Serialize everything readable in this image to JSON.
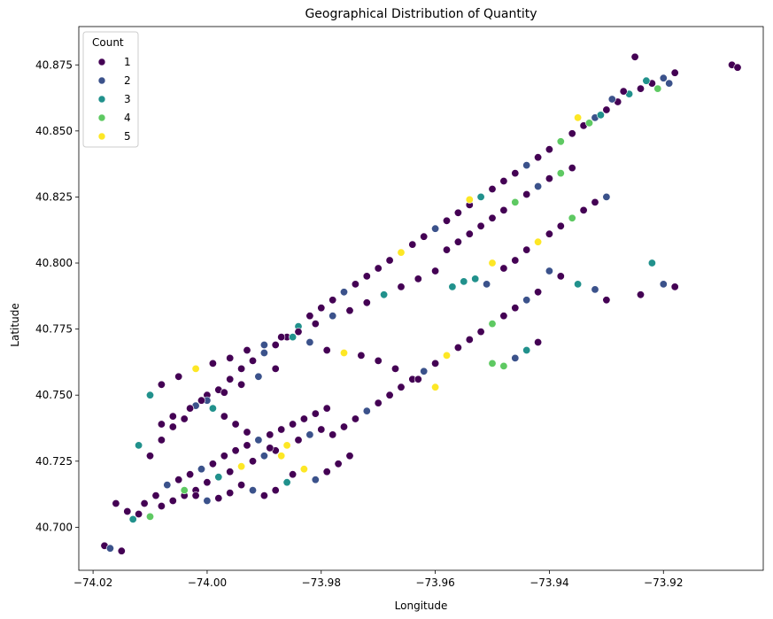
{
  "chart_data": {
    "type": "scatter",
    "title": "Geographical Distribution of Quantity",
    "xlabel": "Longitude",
    "ylabel": "Latitude",
    "xlim": [
      -74.0225,
      -73.9025
    ],
    "ylim": [
      40.6837,
      40.8895
    ],
    "xticks": [
      -74.02,
      -74.0,
      -73.98,
      -73.96,
      -73.94,
      -73.92
    ],
    "xtick_labels": [
      "−74.02",
      "−74.00",
      "−73.98",
      "−73.96",
      "−73.94",
      "−73.92"
    ],
    "yticks": [
      40.7,
      40.725,
      40.75,
      40.775,
      40.8,
      40.825,
      40.85,
      40.875
    ],
    "ytick_labels": [
      "40.700",
      "40.725",
      "40.750",
      "40.775",
      "40.800",
      "40.825",
      "40.850",
      "40.875"
    ],
    "grid": false,
    "legend": {
      "title": "Count",
      "placement": "top-left",
      "entries": [
        {
          "label": "1",
          "color": "#440154"
        },
        {
          "label": "2",
          "color": "#3b528b"
        },
        {
          "label": "3",
          "color": "#21918c"
        },
        {
          "label": "4",
          "color": "#5ec962"
        },
        {
          "label": "5",
          "color": "#fde725"
        }
      ]
    },
    "colors": {
      "1": "#440154",
      "2": "#3b528b",
      "3": "#21918c",
      "4": "#5ec962",
      "5": "#fde725"
    },
    "points": [
      [
        -74.018,
        40.693,
        1
      ],
      [
        -74.017,
        40.692,
        2
      ],
      [
        -74.015,
        40.691,
        1
      ],
      [
        -74.016,
        40.709,
        1
      ],
      [
        -74.014,
        40.706,
        1
      ],
      [
        -74.013,
        40.703,
        3
      ],
      [
        -74.012,
        40.705,
        1
      ],
      [
        -74.011,
        40.709,
        1
      ],
      [
        -74.01,
        40.704,
        4
      ],
      [
        -74.009,
        40.712,
        1
      ],
      [
        -74.008,
        40.708,
        1
      ],
      [
        -74.007,
        40.716,
        2
      ],
      [
        -74.006,
        40.71,
        1
      ],
      [
        -74.005,
        40.718,
        1
      ],
      [
        -74.004,
        40.712,
        1
      ],
      [
        -74.003,
        40.72,
        1
      ],
      [
        -74.002,
        40.714,
        1
      ],
      [
        -74.001,
        40.722,
        2
      ],
      [
        -74.0,
        40.717,
        1
      ],
      [
        -73.999,
        40.724,
        1
      ],
      [
        -73.998,
        40.719,
        3
      ],
      [
        -73.997,
        40.727,
        1
      ],
      [
        -73.996,
        40.721,
        1
      ],
      [
        -73.995,
        40.729,
        1
      ],
      [
        -73.994,
        40.723,
        5
      ],
      [
        -73.993,
        40.731,
        1
      ],
      [
        -73.992,
        40.725,
        1
      ],
      [
        -73.991,
        40.733,
        1
      ],
      [
        -73.99,
        40.727,
        2
      ],
      [
        -73.989,
        40.735,
        1
      ],
      [
        -73.988,
        40.729,
        1
      ],
      [
        -73.987,
        40.737,
        1
      ],
      [
        -73.986,
        40.731,
        5
      ],
      [
        -73.985,
        40.739,
        1
      ],
      [
        -73.984,
        40.733,
        1
      ],
      [
        -73.983,
        40.741,
        1
      ],
      [
        -73.982,
        40.735,
        2
      ],
      [
        -73.981,
        40.743,
        1
      ],
      [
        -73.98,
        40.737,
        1
      ],
      [
        -73.979,
        40.745,
        1
      ],
      [
        -74.012,
        40.731,
        3
      ],
      [
        -74.01,
        40.727,
        1
      ],
      [
        -74.008,
        40.733,
        1
      ],
      [
        -74.006,
        40.738,
        1
      ],
      [
        -74.004,
        40.741,
        1
      ],
      [
        -74.002,
        40.746,
        2
      ],
      [
        -74.0,
        40.75,
        1
      ],
      [
        -73.998,
        40.752,
        1
      ],
      [
        -73.996,
        40.756,
        1
      ],
      [
        -73.994,
        40.76,
        1
      ],
      [
        -73.992,
        40.763,
        1
      ],
      [
        -73.99,
        40.766,
        2
      ],
      [
        -73.988,
        40.769,
        1
      ],
      [
        -73.986,
        40.772,
        1
      ],
      [
        -73.984,
        40.776,
        3
      ],
      [
        -73.982,
        40.78,
        1
      ],
      [
        -73.98,
        40.783,
        1
      ],
      [
        -73.978,
        40.786,
        1
      ],
      [
        -73.976,
        40.789,
        2
      ],
      [
        -73.974,
        40.792,
        1
      ],
      [
        -73.972,
        40.795,
        1
      ],
      [
        -73.97,
        40.798,
        1
      ],
      [
        -73.968,
        40.801,
        1
      ],
      [
        -73.966,
        40.804,
        5
      ],
      [
        -73.964,
        40.807,
        1
      ],
      [
        -73.962,
        40.81,
        1
      ],
      [
        -73.96,
        40.813,
        2
      ],
      [
        -73.958,
        40.816,
        1
      ],
      [
        -73.956,
        40.819,
        1
      ],
      [
        -73.954,
        40.822,
        1
      ],
      [
        -73.952,
        40.825,
        3
      ],
      [
        -73.95,
        40.828,
        1
      ],
      [
        -73.948,
        40.831,
        1
      ],
      [
        -73.946,
        40.834,
        1
      ],
      [
        -73.944,
        40.837,
        2
      ],
      [
        -73.942,
        40.84,
        1
      ],
      [
        -73.94,
        40.843,
        1
      ],
      [
        -73.938,
        40.846,
        4
      ],
      [
        -73.936,
        40.849,
        1
      ],
      [
        -73.934,
        40.852,
        1
      ],
      [
        -73.932,
        40.855,
        2
      ],
      [
        -73.93,
        40.858,
        1
      ],
      [
        -73.928,
        40.861,
        1
      ],
      [
        -73.926,
        40.864,
        3
      ],
      [
        -73.924,
        40.866,
        1
      ],
      [
        -73.922,
        40.868,
        1
      ],
      [
        -73.92,
        40.87,
        2
      ],
      [
        -73.918,
        40.872,
        1
      ],
      [
        -73.925,
        40.878,
        1
      ],
      [
        -73.908,
        40.875,
        1
      ],
      [
        -73.907,
        40.874,
        1
      ],
      [
        -73.918,
        40.791,
        1
      ],
      [
        -73.92,
        40.792,
        2
      ],
      [
        -73.922,
        40.8,
        3
      ],
      [
        -73.924,
        40.788,
        1
      ],
      [
        -73.93,
        40.786,
        1
      ],
      [
        -73.932,
        40.79,
        2
      ],
      [
        -73.935,
        40.792,
        3
      ],
      [
        -73.938,
        40.795,
        1
      ],
      [
        -73.94,
        40.797,
        2
      ],
      [
        -73.942,
        40.789,
        1
      ],
      [
        -73.944,
        40.786,
        2
      ],
      [
        -73.946,
        40.783,
        1
      ],
      [
        -73.948,
        40.78,
        1
      ],
      [
        -73.95,
        40.777,
        4
      ],
      [
        -73.952,
        40.774,
        1
      ],
      [
        -73.954,
        40.771,
        1
      ],
      [
        -73.956,
        40.768,
        1
      ],
      [
        -73.958,
        40.765,
        5
      ],
      [
        -73.96,
        40.762,
        1
      ],
      [
        -73.962,
        40.759,
        2
      ],
      [
        -73.964,
        40.756,
        1
      ],
      [
        -73.966,
        40.753,
        1
      ],
      [
        -73.968,
        40.75,
        1
      ],
      [
        -73.97,
        40.747,
        1
      ],
      [
        -73.972,
        40.744,
        2
      ],
      [
        -73.974,
        40.741,
        1
      ],
      [
        -73.976,
        40.738,
        1
      ],
      [
        -73.978,
        40.735,
        1
      ],
      [
        -73.955,
        40.793,
        3
      ],
      [
        -73.953,
        40.794,
        3
      ],
      [
        -73.951,
        40.792,
        2
      ],
      [
        -73.957,
        40.791,
        3
      ],
      [
        -73.954,
        40.824,
        5
      ],
      [
        -73.95,
        40.8,
        5
      ],
      [
        -73.948,
        40.798,
        1
      ],
      [
        -73.946,
        40.801,
        1
      ],
      [
        -73.944,
        40.805,
        1
      ],
      [
        -73.942,
        40.808,
        5
      ],
      [
        -73.94,
        40.811,
        1
      ],
      [
        -73.938,
        40.814,
        1
      ],
      [
        -73.936,
        40.817,
        4
      ],
      [
        -73.934,
        40.82,
        1
      ],
      [
        -73.932,
        40.823,
        1
      ],
      [
        -73.93,
        40.825,
        2
      ],
      [
        -73.942,
        40.77,
        1
      ],
      [
        -73.944,
        40.767,
        3
      ],
      [
        -73.946,
        40.764,
        2
      ],
      [
        -73.948,
        40.761,
        4
      ],
      [
        -73.95,
        40.762,
        4
      ],
      [
        -73.96,
        40.753,
        5
      ],
      [
        -73.963,
        40.756,
        1
      ],
      [
        -73.967,
        40.76,
        1
      ],
      [
        -73.97,
        40.763,
        1
      ],
      [
        -73.973,
        40.765,
        1
      ],
      [
        -73.976,
        40.766,
        5
      ],
      [
        -73.979,
        40.767,
        1
      ],
      [
        -73.982,
        40.77,
        2
      ],
      [
        -73.985,
        40.772,
        3
      ],
      [
        -73.988,
        40.76,
        1
      ],
      [
        -73.991,
        40.757,
        2
      ],
      [
        -73.994,
        40.754,
        1
      ],
      [
        -73.997,
        40.751,
        1
      ],
      [
        -74.0,
        40.748,
        2
      ],
      [
        -74.003,
        40.745,
        1
      ],
      [
        -74.006,
        40.742,
        1
      ],
      [
        -74.008,
        40.739,
        1
      ],
      [
        -74.01,
        40.75,
        3
      ],
      [
        -74.008,
        40.754,
        1
      ],
      [
        -74.005,
        40.757,
        1
      ],
      [
        -74.002,
        40.76,
        5
      ],
      [
        -73.999,
        40.762,
        1
      ],
      [
        -73.996,
        40.764,
        1
      ],
      [
        -73.993,
        40.767,
        1
      ],
      [
        -73.99,
        40.769,
        2
      ],
      [
        -73.987,
        40.772,
        1
      ],
      [
        -73.984,
        40.774,
        1
      ],
      [
        -73.981,
        40.777,
        1
      ],
      [
        -73.978,
        40.78,
        2
      ],
      [
        -73.975,
        40.782,
        1
      ],
      [
        -73.972,
        40.785,
        1
      ],
      [
        -73.969,
        40.788,
        3
      ],
      [
        -73.966,
        40.791,
        1
      ],
      [
        -73.963,
        40.794,
        1
      ],
      [
        -73.96,
        40.797,
        1
      ],
      [
        -73.985,
        40.72,
        1
      ],
      [
        -73.983,
        40.722,
        5
      ],
      [
        -73.981,
        40.718,
        2
      ],
      [
        -73.979,
        40.721,
        1
      ],
      [
        -73.977,
        40.724,
        1
      ],
      [
        -73.975,
        40.727,
        1
      ],
      [
        -73.986,
        40.717,
        3
      ],
      [
        -73.988,
        40.714,
        1
      ],
      [
        -73.99,
        40.712,
        1
      ],
      [
        -73.992,
        40.714,
        2
      ],
      [
        -73.994,
        40.716,
        1
      ],
      [
        -73.996,
        40.713,
        1
      ],
      [
        -73.998,
        40.711,
        1
      ],
      [
        -74.0,
        40.71,
        2
      ],
      [
        -74.002,
        40.712,
        1
      ],
      [
        -74.004,
        40.714,
        4
      ],
      [
        -73.987,
        40.727,
        5
      ],
      [
        -73.989,
        40.73,
        1
      ],
      [
        -73.991,
        40.733,
        2
      ],
      [
        -73.993,
        40.736,
        1
      ],
      [
        -73.995,
        40.739,
        1
      ],
      [
        -73.997,
        40.742,
        1
      ],
      [
        -73.999,
        40.745,
        3
      ],
      [
        -74.001,
        40.748,
        1
      ],
      [
        -73.935,
        40.855,
        5
      ],
      [
        -73.933,
        40.853,
        4
      ],
      [
        -73.931,
        40.856,
        3
      ],
      [
        -73.929,
        40.862,
        2
      ],
      [
        -73.927,
        40.865,
        1
      ],
      [
        -73.923,
        40.869,
        3
      ],
      [
        -73.921,
        40.866,
        4
      ],
      [
        -73.919,
        40.868,
        2
      ],
      [
        -73.938,
        40.834,
        4
      ],
      [
        -73.936,
        40.836,
        1
      ],
      [
        -73.94,
        40.832,
        1
      ],
      [
        -73.942,
        40.829,
        2
      ],
      [
        -73.944,
        40.826,
        1
      ],
      [
        -73.946,
        40.823,
        4
      ],
      [
        -73.948,
        40.82,
        1
      ],
      [
        -73.95,
        40.817,
        1
      ],
      [
        -73.952,
        40.814,
        1
      ],
      [
        -73.954,
        40.811,
        1
      ],
      [
        -73.956,
        40.808,
        1
      ],
      [
        -73.958,
        40.805,
        1
      ]
    ]
  }
}
